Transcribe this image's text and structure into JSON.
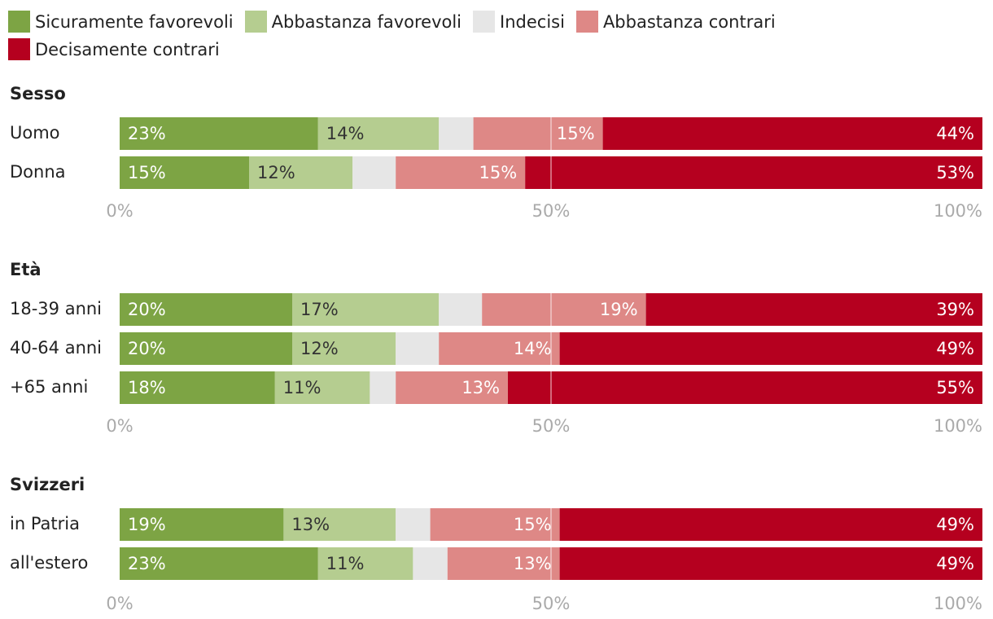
{
  "colors": {
    "sicuramente_favorevoli": "#7da444",
    "abbastanza_favorevoli": "#b5cd90",
    "indecisi": "#e6e6e6",
    "abbastanza_contrari": "#de8886",
    "decisamente_contrari": "#b5001f"
  },
  "chart_data": {
    "type": "bar",
    "orientation": "horizontal",
    "stacked": true,
    "xlim": [
      0,
      100
    ],
    "x_ticks": [
      "0%",
      "50%",
      "100%"
    ],
    "legend": {
      "placement": "top",
      "entries": [
        "Sicuramente favorevoli",
        "Abbastanza favorevoli",
        "Indecisi",
        "Abbastanza contrari",
        "Decisamente contrari"
      ]
    },
    "groups": [
      {
        "title": "Sesso",
        "rows": [
          {
            "label": "Uomo",
            "values": [
              23,
              14,
              4,
              15,
              44
            ],
            "value_labels": [
              "23%",
              "14%",
              "",
              "15%",
              "44%"
            ]
          },
          {
            "label": "Donna",
            "values": [
              15,
              12,
              5,
              15,
              53
            ],
            "value_labels": [
              "15%",
              "12%",
              "",
              "15%",
              "53%"
            ]
          }
        ]
      },
      {
        "title": "Età",
        "rows": [
          {
            "label": "18-39 anni",
            "values": [
              20,
              17,
              5,
              19,
              39
            ],
            "value_labels": [
              "20%",
              "17%",
              "",
              "19%",
              "39%"
            ]
          },
          {
            "label": "40-64 anni",
            "values": [
              20,
              12,
              5,
              14,
              49
            ],
            "value_labels": [
              "20%",
              "12%",
              "",
              "14%",
              "49%"
            ]
          },
          {
            "label": "+65 anni",
            "values": [
              18,
              11,
              3,
              13,
              55
            ],
            "value_labels": [
              "18%",
              "11%",
              "",
              "13%",
              "55%"
            ]
          }
        ]
      },
      {
        "title": "Svizzeri",
        "rows": [
          {
            "label": "in Patria",
            "values": [
              19,
              13,
              4,
              15,
              49
            ],
            "value_labels": [
              "19%",
              "13%",
              "",
              "15%",
              "49%"
            ]
          },
          {
            "label": "all'estero",
            "values": [
              23,
              11,
              4,
              13,
              49
            ],
            "value_labels": [
              "23%",
              "11%",
              "",
              "13%",
              "49%"
            ]
          }
        ]
      }
    ]
  }
}
